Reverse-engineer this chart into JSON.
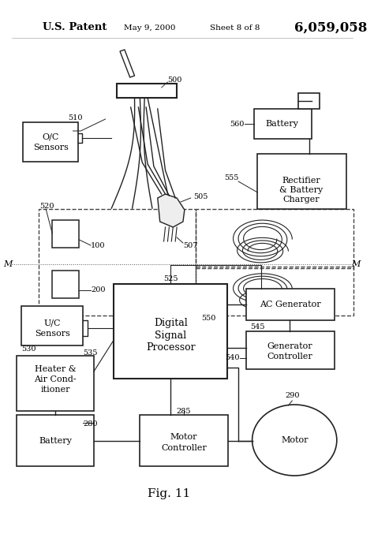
{
  "title_left": "U.S. Patent",
  "title_mid": "May 9, 2000",
  "title_mid2": "Sheet 8 of 8",
  "title_right": "6,059,058",
  "fig_label": "Fig. 11",
  "bg_color": "#ffffff",
  "lc": "#222222",
  "dc": "#444444"
}
